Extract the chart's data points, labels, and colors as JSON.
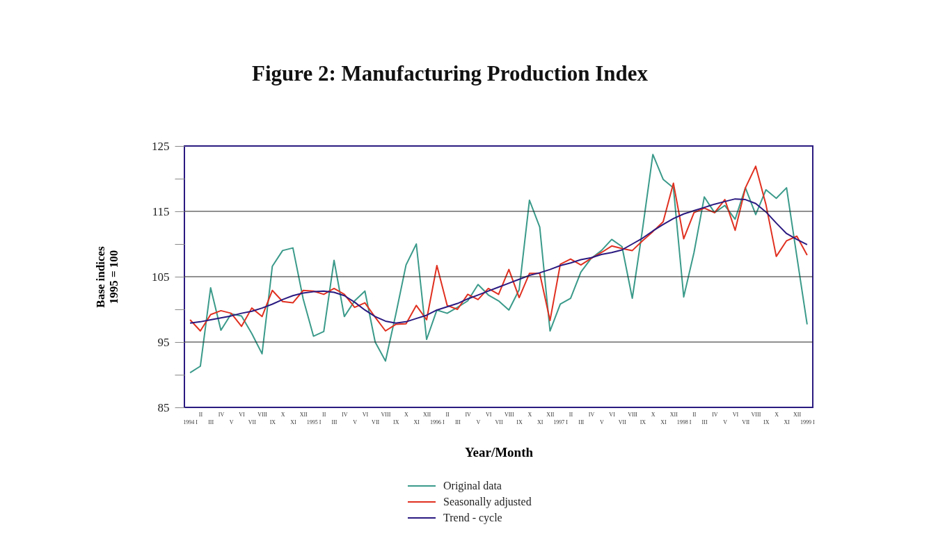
{
  "chart_data": {
    "type": "line",
    "title": "Figure 2: Manufacturing Production Index",
    "xlabel": "Year/Month",
    "ylabel": "Base indices\n1995 = 100",
    "categories": [
      "1994 I",
      "II",
      "III",
      "IV",
      "V",
      "VI",
      "VII",
      "VIII",
      "IX",
      "X",
      "XI",
      "XII",
      "1995 I",
      "II",
      "III",
      "IV",
      "V",
      "VI",
      "VII",
      "VIII",
      "IX",
      "X",
      "XI",
      "XII",
      "1996 I",
      "II",
      "III",
      "IV",
      "V",
      "VI",
      "VII",
      "VIII",
      "IX",
      "X",
      "XI",
      "XII",
      "1997 I",
      "II",
      "III",
      "IV",
      "V",
      "VI",
      "VII",
      "VIII",
      "IX",
      "X",
      "XI",
      "XII",
      "1998 I",
      "II",
      "III",
      "IV",
      "V",
      "VI",
      "VII",
      "VIII",
      "IX",
      "X",
      "XI",
      "XII",
      "1999 I"
    ],
    "series": [
      {
        "name": "Original data",
        "color": "#3a9a8a",
        "values": [
          90.3,
          91.3,
          103.3,
          96.8,
          99.3,
          99.0,
          96.3,
          93.2,
          106.6,
          109.0,
          109.4,
          101.6,
          95.9,
          96.6,
          107.5,
          98.9,
          101.3,
          102.8,
          95.0,
          92.1,
          99.2,
          106.8,
          110.0,
          95.4,
          99.9,
          99.4,
          100.3,
          101.3,
          103.8,
          102.2,
          101.3,
          99.9,
          103.0,
          116.7,
          112.6,
          96.7,
          100.8,
          101.7,
          105.7,
          107.8,
          109.0,
          110.7,
          109.6,
          101.7,
          112.3,
          123.7,
          119.9,
          118.6,
          101.9,
          108.7,
          117.2,
          114.8,
          115.9,
          113.8,
          118.6,
          114.5,
          118.3,
          117.0,
          118.6,
          108.1,
          97.7
        ]
      },
      {
        "name": "Seasonally adjusted",
        "color": "#e03020",
        "values": [
          98.4,
          96.7,
          99.2,
          99.8,
          99.4,
          97.4,
          100.2,
          98.9,
          102.9,
          101.2,
          101.0,
          102.9,
          102.8,
          102.3,
          103.2,
          102.3,
          100.3,
          101.0,
          98.8,
          96.7,
          97.7,
          97.8,
          100.6,
          98.4,
          106.7,
          100.6,
          100.0,
          102.3,
          101.5,
          103.2,
          102.3,
          106.1,
          101.8,
          105.5,
          105.5,
          98.3,
          106.9,
          107.7,
          106.8,
          107.8,
          108.7,
          109.7,
          109.3,
          109.0,
          110.5,
          111.9,
          113.4,
          119.3,
          110.8,
          114.8,
          115.5,
          114.8,
          116.8,
          112.1,
          118.6,
          121.9,
          116.0,
          108.1,
          110.5,
          111.2,
          108.3
        ]
      },
      {
        "name": "Trend - cycle",
        "color": "#2a1a80",
        "values": [
          97.9,
          98.1,
          98.4,
          98.7,
          99.0,
          99.4,
          99.7,
          100.2,
          100.8,
          101.5,
          102.1,
          102.5,
          102.7,
          102.8,
          102.6,
          102.1,
          101.1,
          99.9,
          98.9,
          98.2,
          97.9,
          98.1,
          98.6,
          99.1,
          99.9,
          100.4,
          100.9,
          101.6,
          102.2,
          102.8,
          103.4,
          104.0,
          104.6,
          105.2,
          105.6,
          106.1,
          106.7,
          107.1,
          107.6,
          107.9,
          108.4,
          108.7,
          109.1,
          110.0,
          110.9,
          112.0,
          113.0,
          113.9,
          114.6,
          115.1,
          115.6,
          116.1,
          116.5,
          116.9,
          116.8,
          116.2,
          114.9,
          113.2,
          111.6,
          110.7,
          109.9
        ]
      }
    ],
    "ylim": [
      85,
      125
    ],
    "yticks": [
      85,
      {
        "value": 90,
        "label": null
      },
      95,
      {
        "value": 100,
        "label": null
      },
      105,
      {
        "value": 110,
        "label": null
      },
      115,
      {
        "value": 120,
        "label": null
      },
      125
    ],
    "grid": "y",
    "legend": "bottom",
    "line_style": "solid",
    "marker": "none"
  }
}
